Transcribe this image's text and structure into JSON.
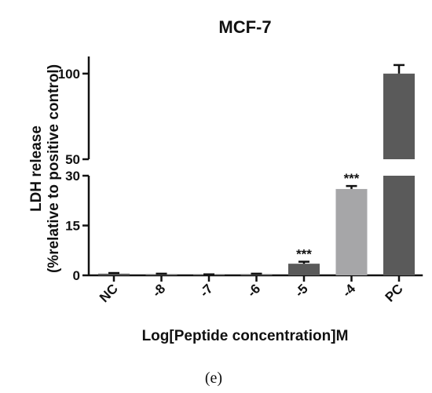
{
  "chart_data": {
    "type": "bar",
    "title": "MCF-7",
    "xlabel": "Log[Peptide concentration]M",
    "ylabel_line1": "LDH release",
    "ylabel_line2": "(%relative to positive control)",
    "categories": [
      "NC",
      "-8",
      "-7",
      "-6",
      "-5",
      "-4",
      "PC"
    ],
    "values": [
      0.5,
      0.3,
      0.2,
      0.3,
      3.5,
      26.0,
      100
    ],
    "errors": [
      0.2,
      0.2,
      0.1,
      0.2,
      0.6,
      0.9,
      5
    ],
    "annotations": [
      "",
      "",
      "",
      "",
      "***",
      "***",
      ""
    ],
    "bar_colors": [
      "#5a5a5a",
      "#5a5a5a",
      "#5a5a5a",
      "#5a5a5a",
      "#5a5a5a",
      "#a6a6a8",
      "#5a5a5a"
    ],
    "y_axis_break": true,
    "ylim_lower": [
      0,
      30
    ],
    "ylim_upper": [
      50,
      110
    ],
    "yticks_lower": [
      "0",
      "15",
      "30"
    ],
    "yticks_upper": [
      "50",
      "100"
    ],
    "grid": false
  },
  "panel_label": "(e)"
}
